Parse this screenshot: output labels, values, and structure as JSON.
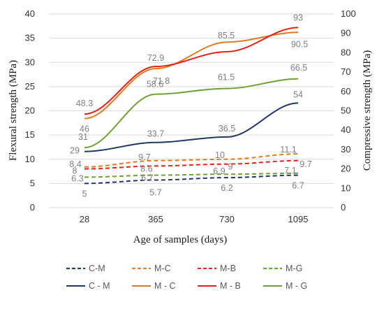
{
  "chart_data": {
    "type": "line",
    "xlabel": "Age of samples (days)",
    "ylabel_left": "Flexural strength (MPa)",
    "ylabel_right": "Compressive strength (MPa)",
    "categories": [
      "28",
      "365",
      "730",
      "1095"
    ],
    "y_left": {
      "min": 0,
      "max": 40,
      "step": 5
    },
    "y_right": {
      "min": 0,
      "max": 100,
      "step": 10
    },
    "grid": true,
    "legend": "bottom",
    "series": [
      {
        "name": "C-M",
        "axis": "left",
        "style": "dashed",
        "color": "#203864",
        "values": [
          5.0,
          5.7,
          6.2,
          6.7
        ],
        "labels": [
          "5",
          "5.7",
          "6.2",
          "6.7"
        ]
      },
      {
        "name": "M-C",
        "axis": "left",
        "style": "dashed",
        "color": "#E07B1F",
        "values": [
          8.4,
          9.7,
          10.0,
          11.1
        ],
        "labels": [
          "8.4",
          "9.7",
          "10",
          "11.1"
        ]
      },
      {
        "name": "M-B",
        "axis": "left",
        "style": "dashed",
        "color": "#E32119",
        "values": [
          8.0,
          8.6,
          9.0,
          9.7
        ],
        "labels": [
          "8",
          "8.6",
          "9",
          "9.7"
        ]
      },
      {
        "name": "M-G",
        "axis": "left",
        "style": "dashed",
        "color": "#70A033",
        "values": [
          6.3,
          6.7,
          6.9,
          7.1
        ],
        "labels": [
          "6.3",
          "6.7",
          "6.9",
          "7.1"
        ]
      },
      {
        "name": "C - M",
        "axis": "right",
        "style": "solid",
        "color": "#203864",
        "values": [
          29,
          33.7,
          36.5,
          54
        ],
        "labels": [
          "29",
          "33.7",
          "36.5",
          "54"
        ]
      },
      {
        "name": "M - C",
        "axis": "right",
        "style": "solid",
        "color": "#E07B1F",
        "values": [
          46,
          71.8,
          85.5,
          90.5
        ],
        "labels": [
          "46",
          "71.8",
          "85.5",
          "90.5"
        ]
      },
      {
        "name": "M - B",
        "axis": "right",
        "style": "solid",
        "color": "#E32119",
        "values": [
          48.3,
          72.9,
          80.5,
          93
        ],
        "labels": [
          "48.3",
          "72.9",
          "",
          "93"
        ]
      },
      {
        "name": "M - G",
        "axis": "right",
        "style": "solid",
        "color": "#70A033",
        "values": [
          31,
          58.6,
          61.5,
          66.5
        ],
        "labels": [
          "31",
          "58.6",
          "61.5",
          "66.5"
        ]
      }
    ]
  }
}
